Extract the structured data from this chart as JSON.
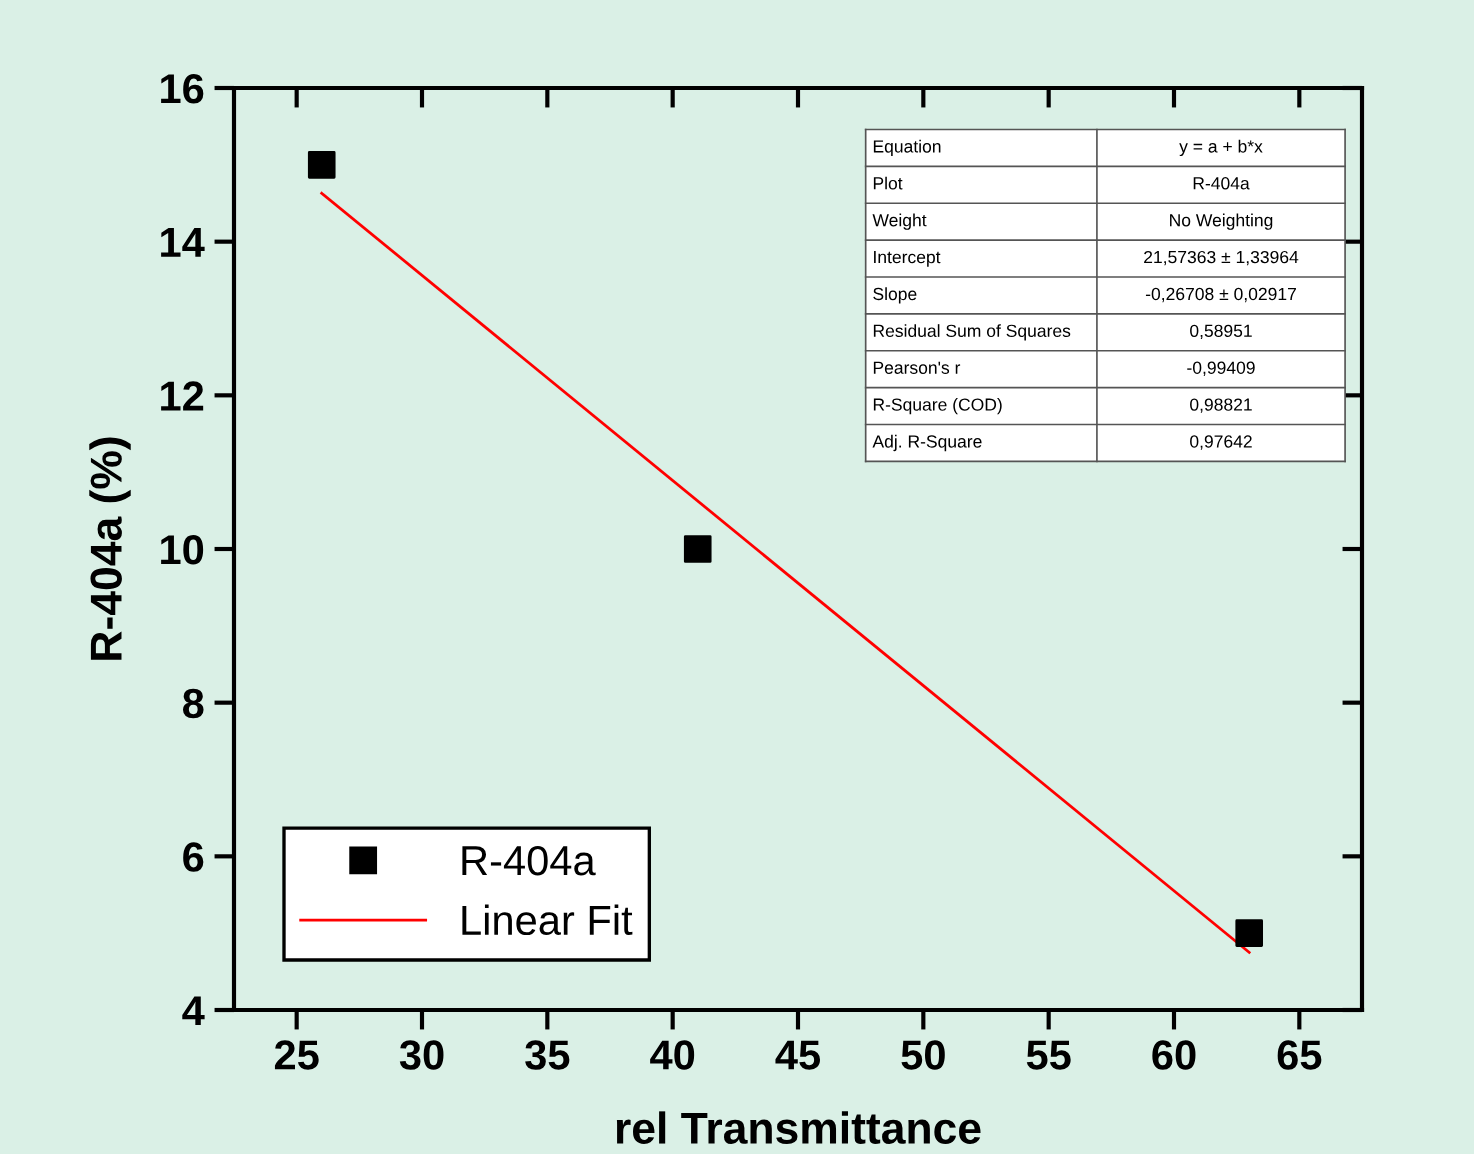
{
  "chart_data": {
    "type": "scatter",
    "xlabel": "rel Transmittance",
    "ylabel": "R-404a (%)",
    "xlim": [
      22.5,
      67.5
    ],
    "xticks": [
      25,
      30,
      35,
      40,
      45,
      50,
      55,
      60,
      65
    ],
    "ylim": [
      4,
      16
    ],
    "yticks": [
      4,
      6,
      8,
      10,
      12,
      14,
      16
    ],
    "series": [
      {
        "name": "R-404a",
        "color": "#000000",
        "marker": "square",
        "x": [
          26,
          41,
          63
        ],
        "values": [
          15,
          10,
          5
        ]
      },
      {
        "name": "Linear Fit",
        "type": "line",
        "color": "#ff0000",
        "marker": "none",
        "line_style": "solid",
        "x": [
          26,
          63
        ],
        "values": [
          14.63,
          4.75
        ]
      }
    ],
    "legend": "bottom left",
    "grid": false,
    "annotations": [
      "Equation",
      "y = a + b*x",
      "Plot",
      "R-404a",
      "Weight",
      "No Weighting",
      "Intercept",
      "21,57363 ± 1,33964",
      "Slope",
      "-0,26708 ± 0,02917",
      "Residual Sum of Squares",
      "0,58951",
      "Pearson's r",
      "-0,99409",
      "R-Square (COD)",
      "0,98821",
      "Adj. R-Square",
      "0,97642"
    ]
  }
}
